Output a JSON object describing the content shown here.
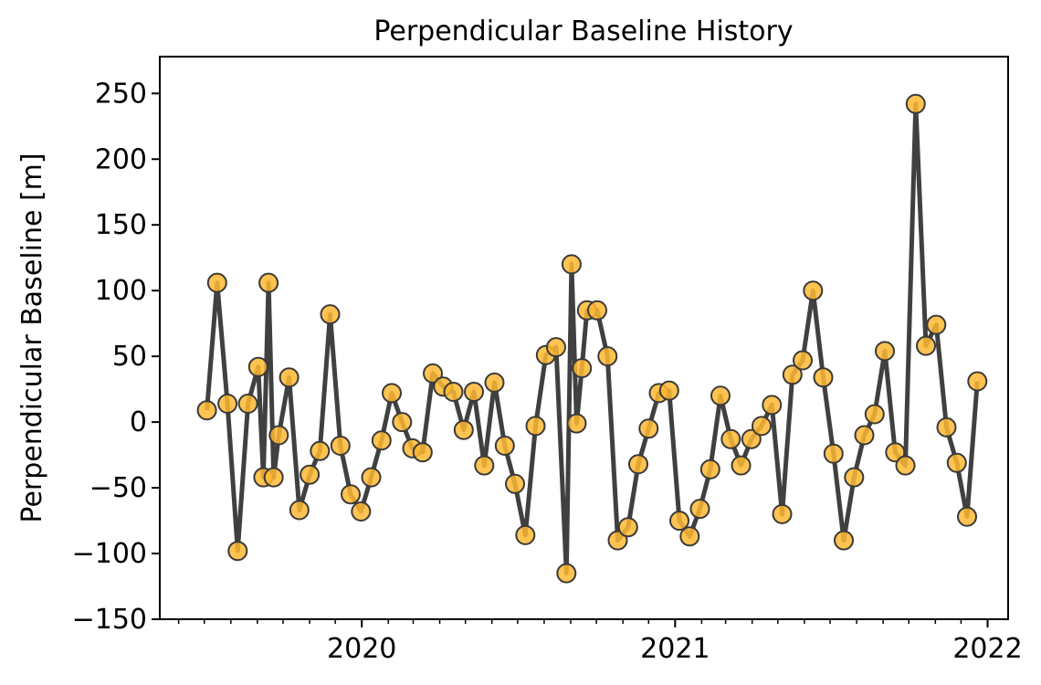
{
  "chart_data": {
    "type": "line",
    "title": "Perpendicular Baseline History",
    "xlabel": "",
    "ylabel": "Perpendicular Baseline [m]",
    "xlim": [
      "2019-05-10",
      "2022-01-25"
    ],
    "ylim": [
      -150,
      278
    ],
    "x_major_ticks": [
      "2020-01-01",
      "2021-01-01",
      "2022-01-01"
    ],
    "x_major_labels": [
      "2020",
      "2021",
      "2022"
    ],
    "y_ticks": [
      -150,
      -100,
      -50,
      0,
      50,
      100,
      150,
      200,
      250
    ],
    "y_tick_labels": [
      "−150",
      "−100",
      "−50",
      "0",
      "50",
      "100",
      "150",
      "200",
      "250"
    ],
    "minor_ticks": "monthly",
    "grid": false,
    "line_color": "#404040",
    "marker_color": "#FFB833",
    "marker_edge_color": "#3a3a3a",
    "points": [
      {
        "x": "2019-07-04",
        "y": 9
      },
      {
        "x": "2019-07-16",
        "y": 106
      },
      {
        "x": "2019-07-28",
        "y": 14
      },
      {
        "x": "2019-08-09",
        "y": -98
      },
      {
        "x": "2019-08-21",
        "y": 14
      },
      {
        "x": "2019-09-02",
        "y": 42
      },
      {
        "x": "2019-09-08",
        "y": -42
      },
      {
        "x": "2019-09-14",
        "y": 106
      },
      {
        "x": "2019-09-20",
        "y": -42
      },
      {
        "x": "2019-09-26",
        "y": -10
      },
      {
        "x": "2019-10-08",
        "y": 34
      },
      {
        "x": "2019-10-20",
        "y": -67
      },
      {
        "x": "2019-11-01",
        "y": -40
      },
      {
        "x": "2019-11-13",
        "y": -22
      },
      {
        "x": "2019-11-25",
        "y": 82
      },
      {
        "x": "2019-12-07",
        "y": -18
      },
      {
        "x": "2019-12-19",
        "y": -55
      },
      {
        "x": "2019-12-31",
        "y": -68
      },
      {
        "x": "2020-01-12",
        "y": -42
      },
      {
        "x": "2020-01-24",
        "y": -14
      },
      {
        "x": "2020-02-05",
        "y": 22
      },
      {
        "x": "2020-02-17",
        "y": 0
      },
      {
        "x": "2020-02-29",
        "y": -20
      },
      {
        "x": "2020-03-12",
        "y": -23
      },
      {
        "x": "2020-03-24",
        "y": 37
      },
      {
        "x": "2020-04-05",
        "y": 27
      },
      {
        "x": "2020-04-17",
        "y": 23
      },
      {
        "x": "2020-04-29",
        "y": -6
      },
      {
        "x": "2020-05-11",
        "y": 23
      },
      {
        "x": "2020-05-23",
        "y": -33
      },
      {
        "x": "2020-06-04",
        "y": 30
      },
      {
        "x": "2020-06-16",
        "y": -18
      },
      {
        "x": "2020-06-28",
        "y": -47
      },
      {
        "x": "2020-07-10",
        "y": -86
      },
      {
        "x": "2020-07-22",
        "y": -3
      },
      {
        "x": "2020-08-03",
        "y": 51
      },
      {
        "x": "2020-08-15",
        "y": 57
      },
      {
        "x": "2020-08-27",
        "y": -115
      },
      {
        "x": "2020-09-02",
        "y": 120
      },
      {
        "x": "2020-09-08",
        "y": -1
      },
      {
        "x": "2020-09-14",
        "y": 41
      },
      {
        "x": "2020-09-20",
        "y": 85
      },
      {
        "x": "2020-10-02",
        "y": 85
      },
      {
        "x": "2020-10-14",
        "y": 50
      },
      {
        "x": "2020-10-26",
        "y": -90
      },
      {
        "x": "2020-11-07",
        "y": -80
      },
      {
        "x": "2020-11-19",
        "y": -32
      },
      {
        "x": "2020-12-01",
        "y": -5
      },
      {
        "x": "2020-12-13",
        "y": 22
      },
      {
        "x": "2020-12-25",
        "y": 24
      },
      {
        "x": "2021-01-06",
        "y": -75
      },
      {
        "x": "2021-01-18",
        "y": -87
      },
      {
        "x": "2021-01-30",
        "y": -66
      },
      {
        "x": "2021-02-11",
        "y": -36
      },
      {
        "x": "2021-02-23",
        "y": 20
      },
      {
        "x": "2021-03-07",
        "y": -13
      },
      {
        "x": "2021-03-19",
        "y": -33
      },
      {
        "x": "2021-03-31",
        "y": -13
      },
      {
        "x": "2021-04-12",
        "y": -3
      },
      {
        "x": "2021-04-24",
        "y": 13
      },
      {
        "x": "2021-05-06",
        "y": -70
      },
      {
        "x": "2021-05-18",
        "y": 36
      },
      {
        "x": "2021-05-30",
        "y": 47
      },
      {
        "x": "2021-06-11",
        "y": 100
      },
      {
        "x": "2021-06-23",
        "y": 34
      },
      {
        "x": "2021-07-05",
        "y": -24
      },
      {
        "x": "2021-07-17",
        "y": -90
      },
      {
        "x": "2021-07-29",
        "y": -42
      },
      {
        "x": "2021-08-10",
        "y": -10
      },
      {
        "x": "2021-08-22",
        "y": 6
      },
      {
        "x": "2021-09-03",
        "y": 54
      },
      {
        "x": "2021-09-15",
        "y": -23
      },
      {
        "x": "2021-09-27",
        "y": -33
      },
      {
        "x": "2021-10-09",
        "y": 242
      },
      {
        "x": "2021-10-21",
        "y": 58
      },
      {
        "x": "2021-11-02",
        "y": 74
      },
      {
        "x": "2021-11-14",
        "y": -4
      },
      {
        "x": "2021-11-26",
        "y": -31
      },
      {
        "x": "2021-12-08",
        "y": -72
      },
      {
        "x": "2021-12-20",
        "y": 31
      }
    ]
  }
}
